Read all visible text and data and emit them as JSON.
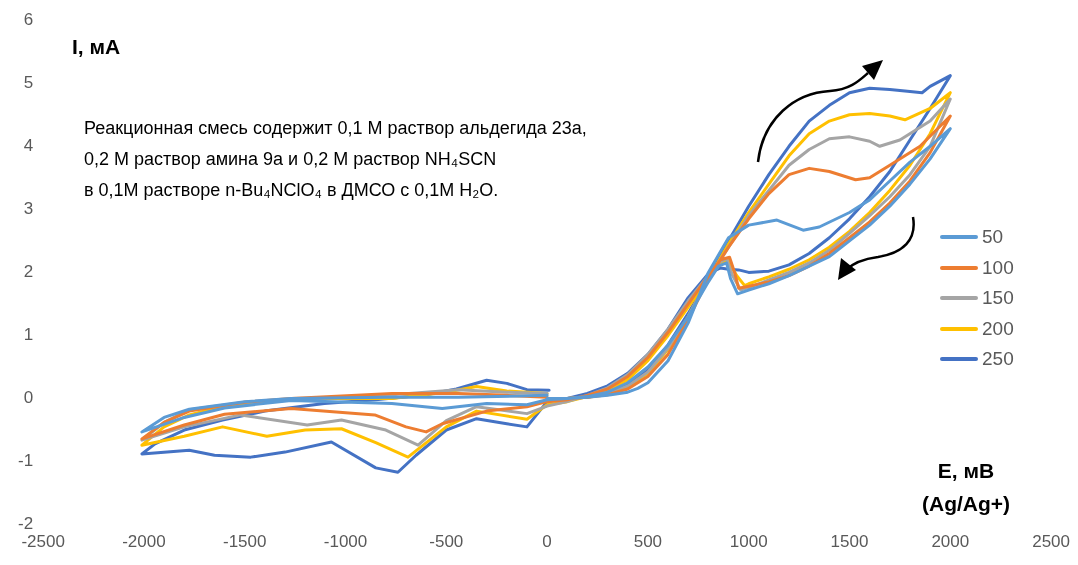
{
  "chart_data": {
    "type": "line",
    "ylabel": "I, мА",
    "xlabel": "E, мВ\n(Ag/Ag+)",
    "annotations": [
      "Реакционная смесь содержит 0,1 М раствор альдегида 23а,",
      "0,2 М раствор амина 9а и 0,2 М раствор NH₄SCN",
      "в 0,1М растворе n-Bu₄NClO₄ в ДМСО с 0,1М H₂O."
    ],
    "xlim": [
      -2500,
      2500
    ],
    "xticks": [
      -2500,
      -2000,
      -1500,
      -1000,
      -500,
      0,
      500,
      1000,
      1500,
      2000,
      2500
    ],
    "ylim": [
      -2,
      6
    ],
    "yticks": [
      -2,
      -1,
      0,
      1,
      2,
      3,
      4,
      5,
      6
    ],
    "grid": false,
    "legend": "right",
    "marker": "none",
    "line_style": "solid",
    "series": [
      {
        "name": "50",
        "color": "#5b9bd5",
        "x": [
          0,
          100,
          200,
          300,
          400,
          450,
          500,
          600,
          700,
          800,
          900,
          1000,
          1140,
          1270,
          1350,
          1500,
          1600,
          1700,
          1800,
          1900,
          2000,
          1900,
          1800,
          1700,
          1600,
          1500,
          1400,
          1300,
          1200,
          1100,
          1000,
          945,
          910,
          890,
          850,
          800,
          700,
          600,
          500,
          400,
          300,
          200,
          100,
          0,
          -100,
          -300,
          -520,
          -770,
          -1270,
          -1600,
          -1800,
          -2010,
          -1900,
          -1775,
          -1500,
          -1270,
          -800,
          -440,
          0
        ],
        "values": [
          0,
          0,
          0.02,
          0.05,
          0.1,
          0.16,
          0.25,
          0.6,
          1.2,
          2.0,
          2.55,
          2.75,
          2.83,
          2.67,
          2.72,
          2.95,
          3.15,
          3.45,
          3.75,
          4.0,
          4.28,
          3.8,
          3.4,
          3.05,
          2.75,
          2.5,
          2.25,
          2.1,
          1.95,
          1.82,
          1.72,
          1.66,
          1.9,
          2.15,
          2.1,
          1.85,
          1.3,
          0.85,
          0.5,
          0.25,
          0.1,
          0.03,
          0,
          -0.02,
          -0.1,
          -0.08,
          -0.16,
          -0.08,
          -0.03,
          -0.15,
          -0.3,
          -0.53,
          -0.3,
          -0.17,
          -0.05,
          0.0,
          0.02,
          0.02,
          0.05
        ]
      },
      {
        "name": "100",
        "color": "#ed7d31",
        "x": [
          0,
          100,
          200,
          300,
          400,
          500,
          600,
          700,
          800,
          900,
          1000,
          1100,
          1200,
          1300,
          1400,
          1530,
          1600,
          1700,
          1850,
          2000,
          1900,
          1800,
          1700,
          1600,
          1500,
          1400,
          1300,
          1200,
          1100,
          1000,
          950,
          930,
          905,
          860,
          800,
          700,
          600,
          500,
          400,
          300,
          200,
          100,
          0,
          -100,
          -300,
          -520,
          -600,
          -700,
          -855,
          -1270,
          -1600,
          -1800,
          -2010,
          -1900,
          -1775,
          -1500,
          -1270,
          -770,
          -440,
          -200,
          0
        ],
        "values": [
          0,
          0,
          0.02,
          0.06,
          0.15,
          0.35,
          0.7,
          1.25,
          1.9,
          2.4,
          2.85,
          3.25,
          3.55,
          3.65,
          3.6,
          3.47,
          3.5,
          3.7,
          4.0,
          4.48,
          3.9,
          3.45,
          3.1,
          2.8,
          2.55,
          2.3,
          2.1,
          1.95,
          1.85,
          1.78,
          1.75,
          2.0,
          2.24,
          2.2,
          1.95,
          1.5,
          1.05,
          0.65,
          0.35,
          0.15,
          0.05,
          -0.02,
          -0.05,
          -0.13,
          -0.2,
          -0.4,
          -0.53,
          -0.45,
          -0.26,
          -0.16,
          -0.25,
          -0.42,
          -0.64,
          -0.38,
          -0.2,
          -0.06,
          0.0,
          0.08,
          0.08,
          0.05,
          0.02
        ]
      },
      {
        "name": "150",
        "color": "#a5a5a5",
        "x": [
          0,
          100,
          200,
          300,
          400,
          500,
          600,
          700,
          800,
          900,
          1000,
          1100,
          1200,
          1300,
          1400,
          1500,
          1600,
          1650,
          1750,
          1900,
          2000,
          1900,
          1800,
          1700,
          1600,
          1500,
          1400,
          1300,
          1200,
          1100,
          1000,
          960,
          920,
          890,
          850,
          800,
          700,
          600,
          500,
          400,
          300,
          200,
          100,
          0,
          -100,
          -350,
          -500,
          -640,
          -800,
          -1020,
          -1190,
          -1520,
          -1800,
          -2010,
          -1900,
          -1775,
          -1500,
          -1270,
          -800,
          -440,
          -200,
          0
        ],
        "values": [
          0,
          0,
          0.02,
          0.08,
          0.2,
          0.42,
          0.8,
          1.3,
          1.9,
          2.4,
          2.9,
          3.3,
          3.7,
          3.95,
          4.12,
          4.15,
          4.08,
          4.0,
          4.1,
          4.4,
          4.75,
          4.0,
          3.55,
          3.2,
          2.9,
          2.62,
          2.35,
          2.15,
          2.0,
          1.88,
          1.76,
          1.72,
          1.95,
          2.22,
          2.15,
          1.95,
          1.55,
          1.1,
          0.7,
          0.38,
          0.17,
          0.05,
          -0.05,
          -0.12,
          -0.24,
          -0.13,
          -0.35,
          -0.74,
          -0.5,
          -0.34,
          -0.42,
          -0.26,
          -0.45,
          -0.66,
          -0.38,
          -0.18,
          -0.06,
          -0.02,
          0.05,
          0.14,
          0.1,
          0.08
        ]
      },
      {
        "name": "200",
        "color": "#ffc000",
        "x": [
          0,
          100,
          200,
          300,
          400,
          500,
          600,
          700,
          800,
          900,
          1000,
          1100,
          1200,
          1300,
          1400,
          1500,
          1600,
          1700,
          1775,
          1900,
          2000,
          1900,
          1800,
          1700,
          1600,
          1500,
          1400,
          1300,
          1200,
          1100,
          1000,
          980,
          940,
          895,
          850,
          800,
          700,
          600,
          500,
          400,
          300,
          200,
          100,
          0,
          -100,
          -350,
          -500,
          -690,
          -850,
          -1020,
          -1200,
          -1390,
          -1610,
          -1800,
          -2010,
          -1900,
          -1775,
          -1600,
          -1440,
          -1100,
          -770,
          -500,
          -350,
          -200,
          0
        ],
        "values": [
          0,
          0,
          0.02,
          0.08,
          0.18,
          0.4,
          0.78,
          1.3,
          1.9,
          2.45,
          2.95,
          3.4,
          3.85,
          4.2,
          4.4,
          4.5,
          4.52,
          4.48,
          4.42,
          4.6,
          4.85,
          4.2,
          3.7,
          3.3,
          2.95,
          2.65,
          2.4,
          2.2,
          2.05,
          1.93,
          1.82,
          1.79,
          1.95,
          2.2,
          2.1,
          1.9,
          1.45,
          1.0,
          0.6,
          0.3,
          0.12,
          0.03,
          -0.05,
          -0.1,
          -0.33,
          -0.2,
          -0.45,
          -0.93,
          -0.7,
          -0.48,
          -0.5,
          -0.6,
          -0.45,
          -0.6,
          -0.74,
          -0.45,
          -0.26,
          -0.12,
          -0.05,
          0.0,
          0.0,
          0.1,
          0.19,
          0.12,
          0.08
        ]
      },
      {
        "name": "250",
        "color": "#4472c4",
        "x": [
          0,
          100,
          200,
          300,
          400,
          500,
          600,
          700,
          800,
          900,
          1000,
          1100,
          1200,
          1300,
          1400,
          1500,
          1600,
          1700,
          1800,
          1860,
          1900,
          2000,
          1900,
          1800,
          1700,
          1600,
          1500,
          1400,
          1300,
          1200,
          1100,
          1000,
          950,
          900,
          860,
          800,
          700,
          600,
          500,
          400,
          300,
          200,
          100,
          0,
          -100,
          -200,
          -350,
          -500,
          -650,
          -740,
          -850,
          -1070,
          -1300,
          -1470,
          -1650,
          -1775,
          -2010,
          -1945,
          -1800,
          -1610,
          -1400,
          -1105,
          -850,
          -600,
          -450,
          -300,
          -200,
          -100,
          10
        ],
        "values": [
          0,
          0,
          0.03,
          0.1,
          0.22,
          0.45,
          0.85,
          1.35,
          1.9,
          2.5,
          3.05,
          3.55,
          4.0,
          4.4,
          4.65,
          4.85,
          4.92,
          4.9,
          4.87,
          4.85,
          4.95,
          5.12,
          4.6,
          4.1,
          3.6,
          3.2,
          2.85,
          2.55,
          2.3,
          2.12,
          2.02,
          2.0,
          2.04,
          2.05,
          2.07,
          1.98,
          1.6,
          1.1,
          0.7,
          0.4,
          0.2,
          0.08,
          0.0,
          -0.05,
          -0.45,
          -0.4,
          -0.32,
          -0.5,
          -0.9,
          -1.17,
          -1.1,
          -0.69,
          -0.85,
          -0.93,
          -0.9,
          -0.82,
          -0.88,
          -0.72,
          -0.5,
          -0.34,
          -0.2,
          -0.08,
          -0.02,
          0.06,
          0.15,
          0.29,
          0.24,
          0.14,
          0.13
        ]
      }
    ]
  }
}
